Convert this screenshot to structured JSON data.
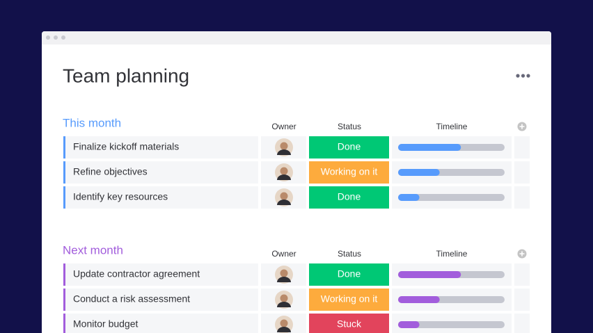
{
  "title": "Team planning",
  "groups": [
    {
      "name": "This month",
      "color": "#579bfc",
      "headers": [
        "Owner",
        "Status",
        "Timeline"
      ],
      "rows": [
        {
          "task": "Finalize kickoff materials",
          "status": "Done",
          "status_color": "#00c875",
          "timeline": 59
        },
        {
          "task": "Refine objectives",
          "status": "Working on it",
          "status_color": "#fdab3d",
          "timeline": 39
        },
        {
          "task": "Identify key resources",
          "status": "Done",
          "status_color": "#00c875",
          "timeline": 20
        }
      ]
    },
    {
      "name": "Next month",
      "color": "#a25ddc",
      "headers": [
        "Owner",
        "Status",
        "Timeline"
      ],
      "rows": [
        {
          "task": "Update contractor agreement",
          "status": "Done",
          "status_color": "#00c875",
          "timeline": 59
        },
        {
          "task": "Conduct a risk assessment",
          "status": "Working on it",
          "status_color": "#fdab3d",
          "timeline": 39
        },
        {
          "task": "Monitor budget",
          "status": "Stuck",
          "status_color": "#e2445c",
          "timeline": 20
        }
      ]
    }
  ]
}
